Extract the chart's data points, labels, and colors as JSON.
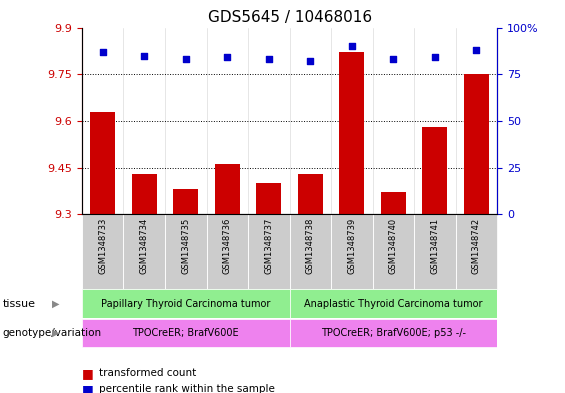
{
  "title": "GDS5645 / 10468016",
  "samples": [
    "GSM1348733",
    "GSM1348734",
    "GSM1348735",
    "GSM1348736",
    "GSM1348737",
    "GSM1348738",
    "GSM1348739",
    "GSM1348740",
    "GSM1348741",
    "GSM1348742"
  ],
  "transformed_count": [
    9.63,
    9.43,
    9.38,
    9.46,
    9.4,
    9.43,
    9.82,
    9.37,
    9.58,
    9.75
  ],
  "percentile_rank": [
    87,
    85,
    83,
    84,
    83,
    82,
    90,
    83,
    84,
    88
  ],
  "ylim_left": [
    9.3,
    9.9
  ],
  "ylim_right": [
    0,
    100
  ],
  "yticks_left": [
    9.3,
    9.45,
    9.6,
    9.75,
    9.9
  ],
  "yticks_right": [
    0,
    25,
    50,
    75,
    100
  ],
  "bar_color": "#cc0000",
  "dot_color": "#0000cc",
  "tissue_groups": [
    {
      "label": "Papillary Thyroid Carcinoma tumor",
      "start": 0,
      "end": 4,
      "color": "#90ee90"
    },
    {
      "label": "Anaplastic Thyroid Carcinoma tumor",
      "start": 5,
      "end": 9,
      "color": "#90ee90"
    }
  ],
  "genotype_groups": [
    {
      "label": "TPOCreER; BrafV600E",
      "start": 0,
      "end": 4,
      "color": "#ee82ee"
    },
    {
      "label": "TPOCreER; BrafV600E; p53 -/-",
      "start": 5,
      "end": 9,
      "color": "#ee82ee"
    }
  ],
  "legend_items": [
    {
      "label": "transformed count",
      "color": "#cc0000"
    },
    {
      "label": "percentile rank within the sample",
      "color": "#0000cc"
    }
  ],
  "tissue_label": "tissue",
  "genotype_label": "genotype/variation",
  "bar_color_left_axis": "#cc0000",
  "right_axis_color": "#0000cc",
  "sample_box_color": "#cccccc",
  "title_fontsize": 11
}
